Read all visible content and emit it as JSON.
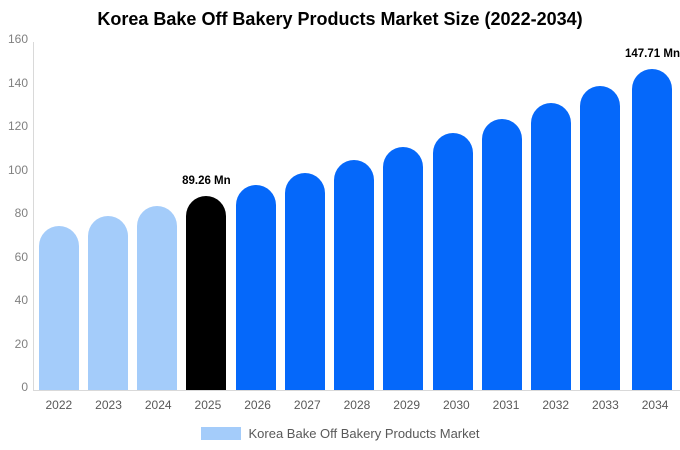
{
  "title": "Korea Bake Off Bakery Products Market Size (2022-2034)",
  "legend": {
    "label": "Korea Bake Off Bakery Products Market",
    "swatch_color": "#a4ccfa"
  },
  "colors": {
    "historical_bar": "#a4ccfa",
    "highlight_bar": "#000000",
    "forecast_bar": "#0568fa",
    "axis_line": "#d9d9d9",
    "ytick_text": "#808080",
    "xlabel_text": "#595959",
    "value_label_text": "#000000",
    "background": "#ffffff"
  },
  "chart_data": {
    "type": "bar",
    "title": "Korea Bake Off Bakery Products Market Size (2022-2034)",
    "categories": [
      "2022",
      "2023",
      "2024",
      "2025",
      "2026",
      "2027",
      "2028",
      "2029",
      "2030",
      "2031",
      "2032",
      "2033",
      "2034"
    ],
    "values": [
      75.5,
      79.8,
      84.4,
      89.26,
      94.4,
      99.8,
      105.6,
      111.6,
      118.1,
      124.8,
      132.0,
      139.6,
      147.71
    ],
    "bar_colors": [
      "#a4ccfa",
      "#a4ccfa",
      "#a4ccfa",
      "#000000",
      "#0568fa",
      "#0568fa",
      "#0568fa",
      "#0568fa",
      "#0568fa",
      "#0568fa",
      "#0568fa",
      "#0568fa",
      "#0568fa"
    ],
    "annotations": [
      {
        "index": 3,
        "text": "89.26 Mn"
      },
      {
        "index": 12,
        "text": "147.71 Mn"
      }
    ],
    "xlabel": "",
    "ylabel": "",
    "ylim": [
      0,
      160
    ],
    "yticks": [
      0,
      20,
      40,
      60,
      80,
      100,
      120,
      140,
      160
    ],
    "grid": false,
    "legend_position": "bottom",
    "legend_entries": [
      "Korea Bake Off Bakery Products Market"
    ]
  }
}
